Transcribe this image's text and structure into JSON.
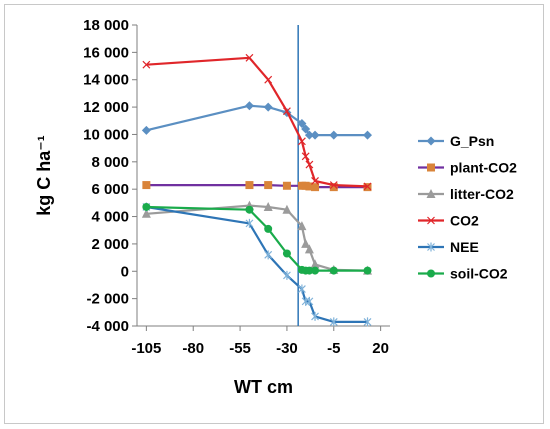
{
  "chart_data": {
    "type": "line",
    "xlabel": "WT cm",
    "ylabel": "kg C ha⁻¹",
    "xlim": [
      -110,
      25
    ],
    "ylim": [
      -4000,
      18000
    ],
    "x_ticks": [
      -105,
      -80,
      -55,
      -30,
      -5,
      20
    ],
    "x_tick_labels": [
      "-105",
      "-80",
      "-55",
      "-30",
      "-5",
      "20"
    ],
    "y_ticks": [
      -4000,
      -2000,
      0,
      2000,
      4000,
      6000,
      8000,
      10000,
      12000,
      14000,
      16000,
      18000
    ],
    "y_tick_labels": [
      "-4 000",
      "-2 000",
      "0",
      "2 000",
      "4 000",
      "6 000",
      "8 000",
      "10 000",
      "12 000",
      "14 000",
      "16 000",
      "18 000"
    ],
    "grid": false,
    "legend_position": "right",
    "reference_line": {
      "x": -24,
      "color": "#2e75b6"
    },
    "series": [
      {
        "name": "G_Psn",
        "color": "#5b8fc2",
        "marker": "diamond",
        "x": [
          -105,
          -50,
          -40,
          -30,
          -22,
          -20,
          -18,
          -15,
          -5,
          13
        ],
        "y": [
          10300,
          12100,
          12000,
          11600,
          10800,
          10400,
          9950,
          9950,
          9950,
          9950
        ]
      },
      {
        "name": "plant-CO2",
        "color": "#7030a0",
        "marker": "square",
        "markerColor": "#d9843a",
        "x": [
          -105,
          -50,
          -40,
          -30,
          -22,
          -20,
          -18,
          -15,
          -5,
          13
        ],
        "y": [
          6300,
          6300,
          6300,
          6250,
          6250,
          6250,
          6200,
          6150,
          6150,
          6150
        ]
      },
      {
        "name": "litter-CO2",
        "color": "#9b9b9b",
        "marker": "triangle",
        "x": [
          -105,
          -50,
          -40,
          -30,
          -22,
          -20,
          -18,
          -15,
          -5,
          13
        ],
        "y": [
          4200,
          4800,
          4700,
          4500,
          3300,
          2000,
          1600,
          500,
          100,
          50
        ]
      },
      {
        "name": "CO2",
        "color": "#e0262a",
        "marker": "x",
        "x": [
          -105,
          -50,
          -40,
          -30,
          -22,
          -20,
          -18,
          -15,
          -5,
          13
        ],
        "y": [
          15100,
          15600,
          14000,
          11700,
          9500,
          8400,
          7800,
          6600,
          6300,
          6200
        ]
      },
      {
        "name": "NEE",
        "color": "#2e75b6",
        "marker": "star",
        "x": [
          -105,
          -50,
          -40,
          -30,
          -22,
          -20,
          -18,
          -15,
          -5,
          13
        ],
        "y": [
          4700,
          3500,
          1200,
          -300,
          -1300,
          -2200,
          -2200,
          -3300,
          -3700,
          -3700
        ]
      },
      {
        "name": "soil-CO2",
        "color": "#1aab4b",
        "marker": "circle",
        "x": [
          -105,
          -50,
          -40,
          -30,
          -22,
          -20,
          -18,
          -15,
          -5,
          13
        ],
        "y": [
          4700,
          4500,
          3100,
          1300,
          100,
          50,
          50,
          50,
          50,
          50
        ]
      }
    ]
  }
}
